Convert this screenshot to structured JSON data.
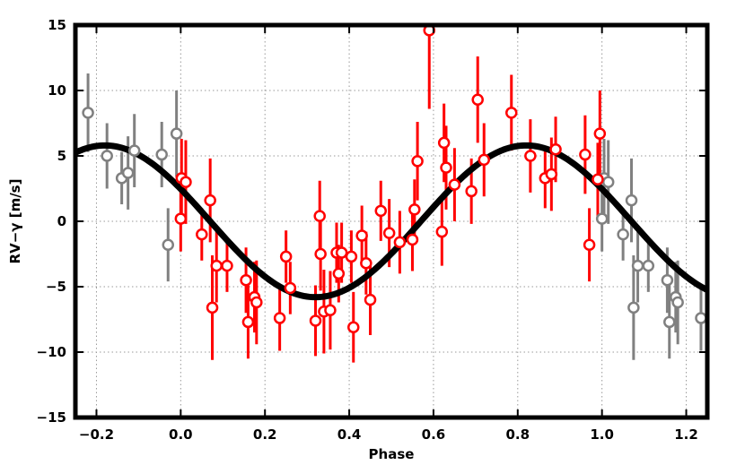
{
  "chart_data": {
    "type": "scatter",
    "title": "",
    "xlabel": "Phase",
    "ylabel": "RV−γ [m/s]",
    "xlim": [
      -0.25,
      1.25
    ],
    "ylim": [
      -15,
      15
    ],
    "xticks": [
      -0.2,
      0.0,
      0.2,
      0.4,
      0.6,
      0.8,
      1.0,
      1.2
    ],
    "xtick_labels": [
      "−0.2",
      "0.0",
      "0.2",
      "0.4",
      "0.6",
      "0.8",
      "1.0",
      "1.2"
    ],
    "yticks": [
      -15,
      -10,
      -5,
      0,
      5,
      10,
      15
    ],
    "ytick_labels": [
      "−15",
      "−10",
      "−5",
      "0",
      "5",
      "10",
      "15"
    ],
    "grid": true,
    "model": {
      "type": "sinusoid",
      "amplitude": 5.8,
      "phase_of_max": 0.82,
      "color": "#000000"
    },
    "series": [
      {
        "color": "#ff0000",
        "points": [
          {
            "x": 0.0,
            "y": 0.2,
            "err": 2.5
          },
          {
            "x": 0.002,
            "y": 3.3,
            "err": 3.0
          },
          {
            "x": 0.012,
            "y": 3.0,
            "err": 3.2
          },
          {
            "x": 0.05,
            "y": -1.0,
            "err": 2.0
          },
          {
            "x": 0.07,
            "y": 1.6,
            "err": 3.2
          },
          {
            "x": 0.075,
            "y": -6.6,
            "err": 4.0
          },
          {
            "x": 0.085,
            "y": -3.4,
            "err": 2.8
          },
          {
            "x": 0.11,
            "y": -3.4,
            "err": 2.0
          },
          {
            "x": 0.155,
            "y": -4.5,
            "err": 2.5
          },
          {
            "x": 0.16,
            "y": -7.7,
            "err": 2.8
          },
          {
            "x": 0.175,
            "y": -5.8,
            "err": 2.7
          },
          {
            "x": 0.18,
            "y": -6.2,
            "err": 3.2
          },
          {
            "x": 0.235,
            "y": -7.4,
            "err": 2.5
          },
          {
            "x": 0.25,
            "y": -2.7,
            "err": 2.0
          },
          {
            "x": 0.26,
            "y": -5.1,
            "err": 2.0
          },
          {
            "x": 0.32,
            "y": -7.6,
            "err": 2.7
          },
          {
            "x": 0.33,
            "y": 0.4,
            "err": 2.7
          },
          {
            "x": 0.332,
            "y": -2.5,
            "err": 2.8
          },
          {
            "x": 0.34,
            "y": -6.9,
            "err": 3.2
          },
          {
            "x": 0.355,
            "y": -6.8,
            "err": 3.0
          },
          {
            "x": 0.37,
            "y": -2.4,
            "err": 2.3
          },
          {
            "x": 0.375,
            "y": -4.0,
            "err": 2.2
          },
          {
            "x": 0.382,
            "y": -2.4,
            "err": 2.3
          },
          {
            "x": 0.405,
            "y": -2.7,
            "err": 2.0
          },
          {
            "x": 0.41,
            "y": -8.1,
            "err": 2.7
          },
          {
            "x": 0.43,
            "y": -1.1,
            "err": 2.3
          },
          {
            "x": 0.44,
            "y": -3.2,
            "err": 2.4
          },
          {
            "x": 0.45,
            "y": -6.0,
            "err": 2.7
          },
          {
            "x": 0.475,
            "y": 0.8,
            "err": 2.3
          },
          {
            "x": 0.495,
            "y": -0.9,
            "err": 2.6
          },
          {
            "x": 0.52,
            "y": -1.6,
            "err": 2.4
          },
          {
            "x": 0.55,
            "y": -1.4,
            "err": 2.4
          },
          {
            "x": 0.555,
            "y": 0.9,
            "err": 2.3
          },
          {
            "x": 0.562,
            "y": 4.6,
            "err": 3.0
          },
          {
            "x": 0.59,
            "y": 14.6,
            "err": 6.0
          },
          {
            "x": 0.62,
            "y": -0.8,
            "err": 2.6
          },
          {
            "x": 0.625,
            "y": 6.0,
            "err": 3.0
          },
          {
            "x": 0.63,
            "y": 4.1,
            "err": 3.2
          },
          {
            "x": 0.65,
            "y": 2.8,
            "err": 2.8
          },
          {
            "x": 0.69,
            "y": 2.3,
            "err": 2.5
          },
          {
            "x": 0.705,
            "y": 9.3,
            "err": 3.3
          },
          {
            "x": 0.72,
            "y": 4.7,
            "err": 2.8
          },
          {
            "x": 0.785,
            "y": 8.3,
            "err": 2.9
          },
          {
            "x": 0.83,
            "y": 5.0,
            "err": 2.8
          },
          {
            "x": 0.865,
            "y": 3.3,
            "err": 2.3
          },
          {
            "x": 0.88,
            "y": 3.6,
            "err": 2.8
          },
          {
            "x": 0.89,
            "y": 5.5,
            "err": 2.5
          },
          {
            "x": 0.96,
            "y": 5.1,
            "err": 3.0
          },
          {
            "x": 0.97,
            "y": -1.8,
            "err": 2.8
          },
          {
            "x": 0.99,
            "y": 3.2,
            "err": 2.8
          },
          {
            "x": 0.995,
            "y": 6.7,
            "err": 3.3
          }
        ]
      },
      {
        "color": "#808080",
        "points": [
          {
            "x": -0.22,
            "y": 8.3,
            "err": 3.0
          },
          {
            "x": -0.175,
            "y": 5.0,
            "err": 2.5
          },
          {
            "x": -0.14,
            "y": 3.3,
            "err": 2.0
          },
          {
            "x": -0.125,
            "y": 3.7,
            "err": 2.8
          },
          {
            "x": -0.11,
            "y": 5.4,
            "err": 2.8
          },
          {
            "x": -0.045,
            "y": 5.1,
            "err": 2.5
          },
          {
            "x": -0.03,
            "y": -1.8,
            "err": 2.8
          },
          {
            "x": -0.01,
            "y": 6.7,
            "err": 3.3
          },
          {
            "x": 1.0,
            "y": 0.2,
            "err": 2.5
          },
          {
            "x": 1.005,
            "y": 3.3,
            "err": 3.0
          },
          {
            "x": 1.015,
            "y": 3.0,
            "err": 3.2
          },
          {
            "x": 1.05,
            "y": -1.0,
            "err": 2.0
          },
          {
            "x": 1.07,
            "y": 1.6,
            "err": 3.2
          },
          {
            "x": 1.075,
            "y": -6.6,
            "err": 4.0
          },
          {
            "x": 1.085,
            "y": -3.4,
            "err": 2.8
          },
          {
            "x": 1.11,
            "y": -3.4,
            "err": 2.0
          },
          {
            "x": 1.155,
            "y": -4.5,
            "err": 2.5
          },
          {
            "x": 1.16,
            "y": -7.7,
            "err": 2.8
          },
          {
            "x": 1.175,
            "y": -5.8,
            "err": 2.7
          },
          {
            "x": 1.18,
            "y": -6.2,
            "err": 3.2
          },
          {
            "x": 1.235,
            "y": -7.4,
            "err": 2.5
          }
        ]
      }
    ]
  }
}
